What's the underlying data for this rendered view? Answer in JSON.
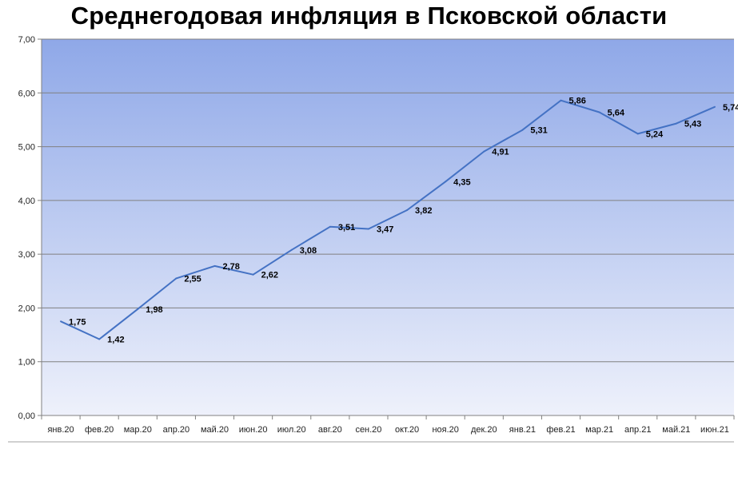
{
  "chart_data": {
    "type": "line",
    "title": "Среднегодовая инфляция в Псковской области",
    "xlabel": "",
    "ylabel": "",
    "ylim": [
      0,
      7
    ],
    "yticks": [
      "0,00",
      "1,00",
      "2,00",
      "3,00",
      "4,00",
      "5,00",
      "6,00",
      "7,00"
    ],
    "grid": true,
    "legend": "none",
    "categories": [
      "янв.20",
      "фев.20",
      "мар.20",
      "апр.20",
      "май.20",
      "июн.20",
      "июл.20",
      "авг.20",
      "сен.20",
      "окт.20",
      "ноя.20",
      "дек.20",
      "янв.21",
      "фев.21",
      "мар.21",
      "апр.21",
      "май.21",
      "июн.21"
    ],
    "series": [
      {
        "values": [
          1.75,
          1.42,
          1.98,
          2.55,
          2.78,
          2.62,
          3.08,
          3.51,
          3.47,
          3.82,
          4.35,
          4.91,
          5.31,
          5.86,
          5.64,
          5.24,
          5.43,
          5.74
        ],
        "labels": [
          "1,75",
          "1,42",
          "1,98",
          "2,55",
          "2,78",
          "2,62",
          "3,08",
          "3,51",
          "3,47",
          "3,82",
          "4,35",
          "4,91",
          "5,31",
          "5,86",
          "5,64",
          "5,24",
          "5,43",
          "5,74"
        ],
        "color": "#4472c4"
      }
    ],
    "colors": {
      "plot_top": "#8fa8e8",
      "plot_bottom": "#eef1fb",
      "grid": "#808080",
      "axis": "#808080"
    }
  }
}
